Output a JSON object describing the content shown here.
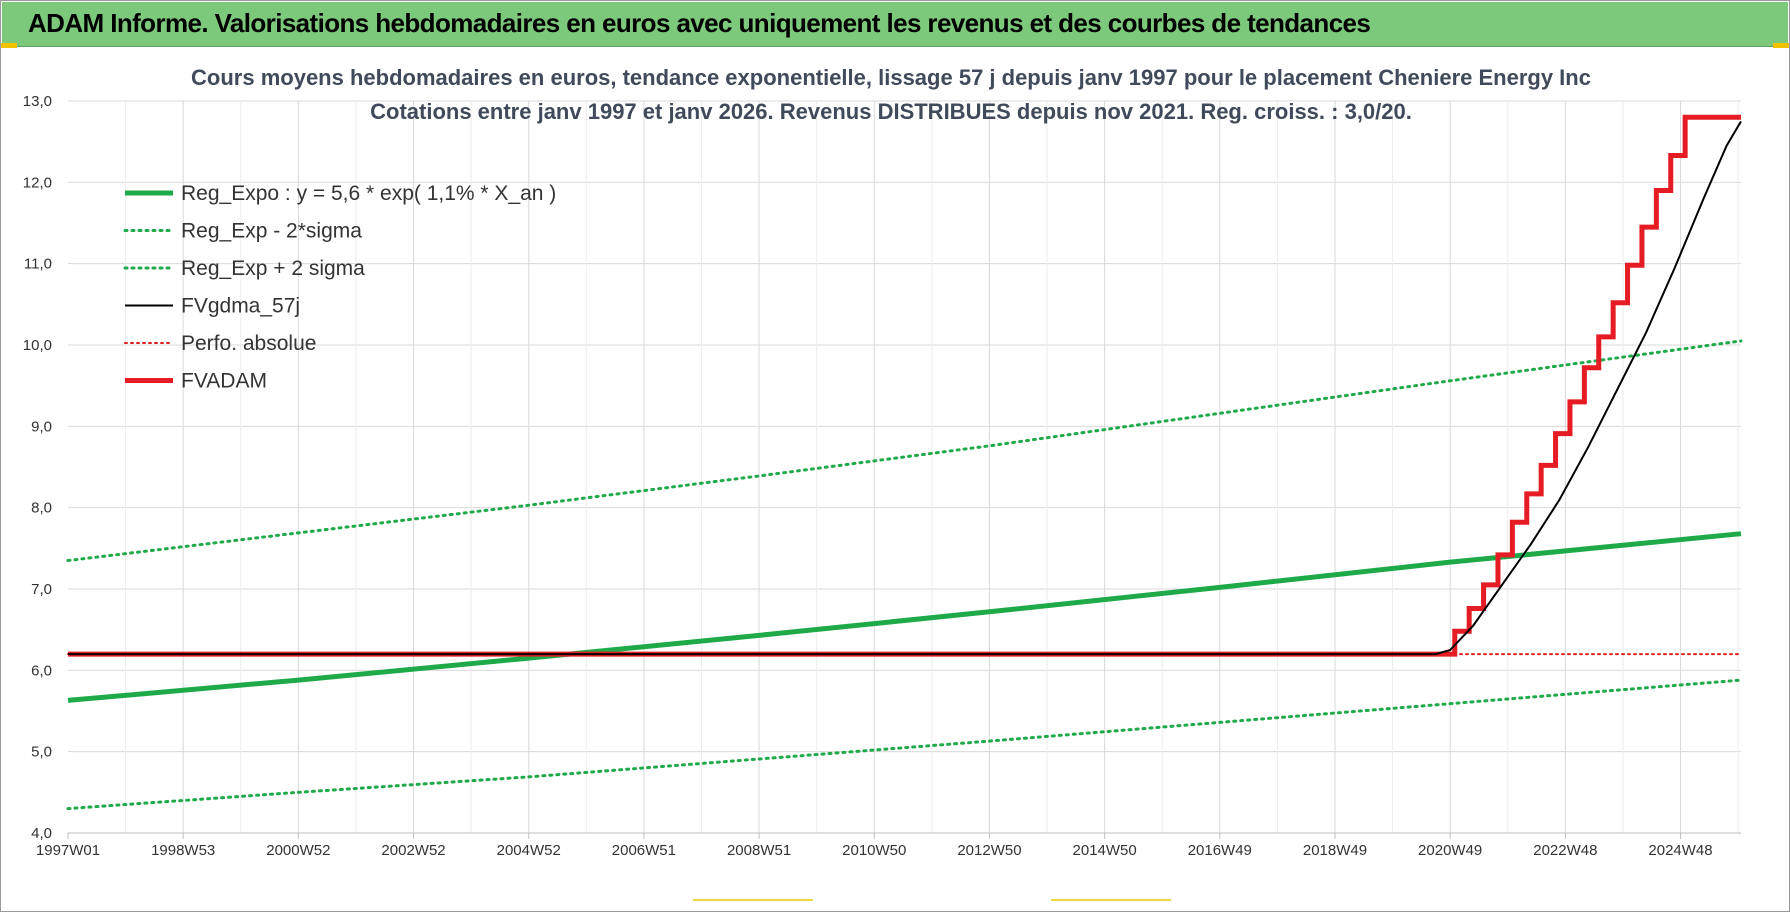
{
  "header": {
    "title": "ADAM Informe. Valorisations hebdomadaires en euros avec uniquement les revenus et des courbes de tendances"
  },
  "colors": {
    "header_bg": "#7cc97c",
    "reg_expo": "#1faa4a",
    "sigma": "#1faa4a",
    "fvgdma": "#000000",
    "perfo": "#e02020",
    "fvadam": "#e51c23",
    "title_text": "#404a5a",
    "grid": "#d9d9d9"
  },
  "chart_data": {
    "type": "line",
    "title_line1": "Cours moyens hebdomadaires en euros, tendance exponentielle, lissage 57 j depuis janv 1997 pour le placement Cheniere Energy Inc",
    "title_line2": "Cotations entre janv 1997 et janv 2026. Revenus DISTRIBUES depuis nov 2021. Reg. croiss. : 3,0/20.",
    "xlabel": "",
    "ylabel": "",
    "x_tick_labels": [
      "1997W01",
      "1998W53",
      "2000W52",
      "2002W52",
      "2004W52",
      "2006W51",
      "2008W51",
      "2010W50",
      "2012W50",
      "2014W50",
      "2016W49",
      "2018W49",
      "2020W49",
      "2022W48",
      "2024W48"
    ],
    "x_range_years": [
      1997.0,
      2026.05
    ],
    "y_tick_labels": [
      "4,0",
      "5,0",
      "6,0",
      "7,0",
      "8,0",
      "9,0",
      "10,0",
      "11,0",
      "12,0",
      "13,0"
    ],
    "ylim": [
      4.0,
      13.0
    ],
    "grid": true,
    "legend_position": "top-left",
    "series": [
      {
        "name": "Reg_Expo : y = 5,6 * exp( 1,1% *  X_an )",
        "style": "solid-thick",
        "x": [
          1997.0,
          2001.0,
          2005.0,
          2009.0,
          2013.0,
          2017.0,
          2021.0,
          2026.05
        ],
        "y": [
          5.63,
          5.88,
          6.15,
          6.43,
          6.72,
          7.02,
          7.33,
          7.68
        ]
      },
      {
        "name": "Reg_Exp - 2*sigma",
        "style": "dotted",
        "x": [
          1997.0,
          2001.0,
          2005.0,
          2009.0,
          2013.0,
          2017.0,
          2021.0,
          2026.05
        ],
        "y": [
          4.3,
          4.5,
          4.69,
          4.91,
          5.13,
          5.36,
          5.59,
          5.88
        ]
      },
      {
        "name": "Reg_Exp + 2 sigma",
        "style": "dotted",
        "x": [
          1997.0,
          2001.0,
          2005.0,
          2009.0,
          2013.0,
          2017.0,
          2021.0,
          2026.05
        ],
        "y": [
          7.35,
          7.69,
          8.03,
          8.39,
          8.76,
          9.16,
          9.56,
          10.05
        ]
      },
      {
        "name": "FVgdma_57j",
        "style": "solid-thin",
        "x": [
          1997.0,
          2020.75,
          2021.0,
          2021.4,
          2021.9,
          2022.4,
          2022.9,
          2023.4,
          2023.9,
          2024.4,
          2024.9,
          2025.4,
          2025.8,
          2026.05
        ],
        "y": [
          6.2,
          6.2,
          6.25,
          6.55,
          7.05,
          7.55,
          8.1,
          8.75,
          9.45,
          10.15,
          10.95,
          11.8,
          12.45,
          12.75
        ]
      },
      {
        "name": "Perfo. absolue",
        "style": "dotted-red",
        "x": [
          1997.0,
          2020.9,
          2026.05
        ],
        "y": [
          6.2,
          6.2,
          6.2
        ]
      },
      {
        "name": "FVADAM",
        "style": "step-thick",
        "x": [
          1997.0,
          2020.92,
          2021.08,
          2021.33,
          2021.58,
          2021.83,
          2022.08,
          2022.33,
          2022.58,
          2022.83,
          2023.08,
          2023.33,
          2023.58,
          2023.83,
          2024.08,
          2024.33,
          2024.58,
          2024.83,
          2025.08,
          2025.33,
          2025.58,
          2025.75
        ],
        "y": [
          6.2,
          6.2,
          6.48,
          6.76,
          7.05,
          7.42,
          7.82,
          8.17,
          8.52,
          8.91,
          9.3,
          9.72,
          10.1,
          10.52,
          10.98,
          11.45,
          11.9,
          12.33,
          12.8,
          12.8,
          12.8,
          12.8
        ]
      }
    ]
  }
}
